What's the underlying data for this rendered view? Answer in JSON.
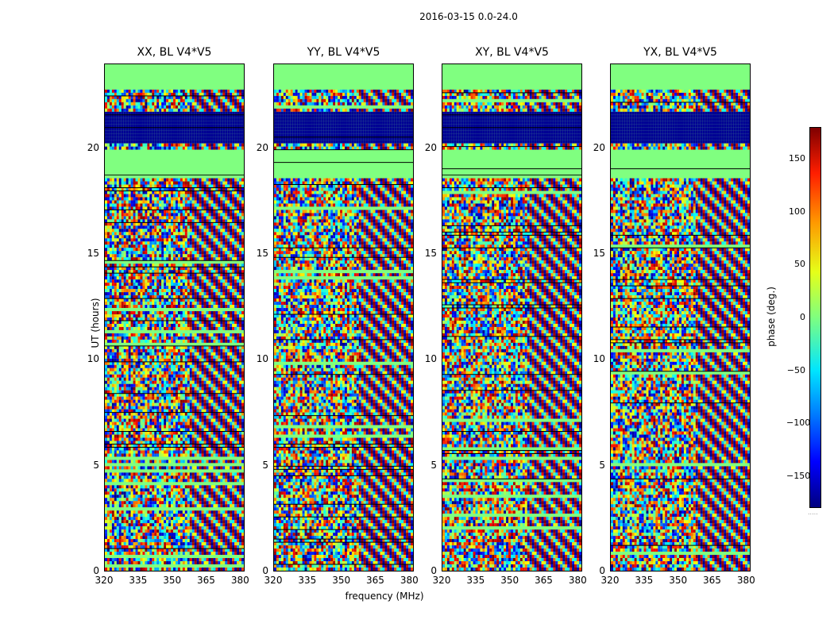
{
  "figure": {
    "suptitle": "2016-03-15 0.0-24.0",
    "xlabel": "frequency (MHz)",
    "ylabel": "UT (hours)"
  },
  "colorbar": {
    "label": "phase (deg.)",
    "ticks": [
      "150",
      "100",
      "50",
      "0",
      "−50",
      "−100",
      "−150"
    ],
    "range": [
      -180,
      180
    ],
    "colormap": "jet",
    "footer": "....."
  },
  "chart_data": {
    "type": "heatmap",
    "title": "2016-03-15 0.0-24.0",
    "xlabel": "frequency (MHz)",
    "ylabel": "UT (hours)",
    "xlim": [
      320,
      382
    ],
    "ylim": [
      0,
      24
    ],
    "x_ticks": [
      "320",
      "335",
      "350",
      "365",
      "380"
    ],
    "y_ticks": [
      "0",
      "5",
      "10",
      "15",
      "20"
    ],
    "value_label": "phase (deg.)",
    "value_range": [
      -180,
      180
    ],
    "panels": [
      {
        "title": "XX, BL V4*V5"
      },
      {
        "title": "YY, BL V4*V5"
      },
      {
        "title": "XY, BL V4*V5"
      },
      {
        "title": "YX, BL V4*V5"
      }
    ]
  }
}
